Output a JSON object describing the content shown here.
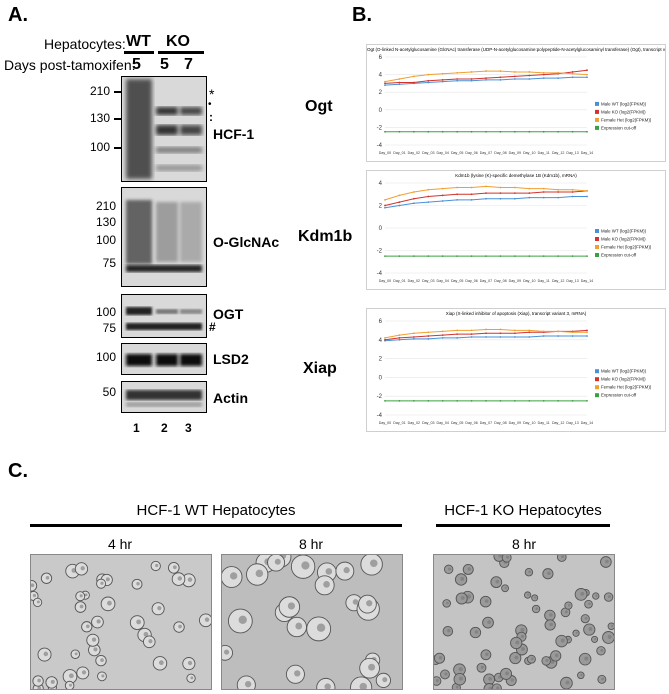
{
  "panel_a": {
    "letter": "A.",
    "row_label_1": "Hepatocytes:",
    "row_label_2": "Days post-tamoxifen:",
    "wt": "WT",
    "ko": "KO",
    "days": [
      "5",
      "5",
      "7"
    ],
    "lanes": [
      "1",
      "2",
      "3"
    ],
    "blots": [
      {
        "name": "HCF-1",
        "markers": [
          "210",
          "130",
          "100"
        ],
        "annotations": [
          "*",
          "•",
          ":"
        ]
      },
      {
        "name": "O-GlcNAc",
        "markers": [
          "210",
          "130",
          "100",
          "75"
        ]
      },
      {
        "name": "OGT",
        "markers": [
          "100",
          "75"
        ],
        "annotations": [
          "#"
        ]
      },
      {
        "name": "LSD2",
        "markers": [
          "100"
        ]
      },
      {
        "name": "Actin",
        "markers": [
          "50"
        ]
      }
    ]
  },
  "panel_b": {
    "letter": "B.",
    "legend": [
      "Male WT (log2(FPKM))",
      "Male KO (log2(FPKM))",
      "Female Het (log2(FPKM))",
      "Expression cut-off"
    ],
    "legend_colors": [
      "#4a90d9",
      "#d0342c",
      "#f0a030",
      "#3aa040"
    ],
    "x_ticks": [
      "Day_00",
      "Day_01",
      "Day_02",
      "Day_03",
      "Day_04",
      "Day_05",
      "Day_06",
      "Day_07",
      "Day_08",
      "Day_09",
      "Day_10",
      "Day_11",
      "Day_12",
      "Day_13",
      "Day_14"
    ],
    "charts": [
      {
        "gene": "Ogt",
        "title": "Ogt (O-linked N-acetylglucosamine (GlcNAc) transferase (UDP-N-acetylglucosamine:polypeptide-N-acetylglucosaminyl transferase) (Ogt), transcript variant 1, mRNA)"
      },
      {
        "gene": "Kdm1b",
        "title": "Kdm1b (lysine (K)-specific demethylase 1B (Kdm1b), mRNA)"
      },
      {
        "gene": "Xiap",
        "title": "Xiap (X-linked inhibitor of apoptosis (Xiap), transcript variant 3, mRNA)"
      }
    ]
  },
  "chart_data": [
    {
      "type": "line",
      "title": "Ogt (O-linked N-acetylglucosamine (GlcNAc) transferase (UDP-N-acetylglucosamine:polypeptide-N-acetylglucosaminyl transferase) (Ogt), transcript variant 1, mRNA)",
      "x": [
        "Day_00",
        "Day_01",
        "Day_02",
        "Day_03",
        "Day_04",
        "Day_05",
        "Day_06",
        "Day_07",
        "Day_08",
        "Day_09",
        "Day_10",
        "Day_11",
        "Day_12",
        "Day_13",
        "Day_14"
      ],
      "ylim": [
        -4,
        6
      ],
      "yticks": [
        -4,
        -2,
        0,
        2,
        4,
        6
      ],
      "series": [
        {
          "name": "Male WT (log2(FPKM))",
          "values": [
            2.8,
            2.9,
            3.0,
            3.1,
            3.2,
            3.3,
            3.3,
            3.4,
            3.4,
            3.5,
            3.5,
            3.6,
            3.6,
            3.7,
            3.7
          ]
        },
        {
          "name": "Male KO (log2(FPKM))",
          "values": [
            3.0,
            3.1,
            3.1,
            3.3,
            3.4,
            3.5,
            3.5,
            3.6,
            3.7,
            3.8,
            3.9,
            4.0,
            4.1,
            4.3,
            4.5
          ]
        },
        {
          "name": "Female Het (log2(FPKM))",
          "values": [
            3.2,
            3.5,
            3.8,
            4.0,
            4.1,
            4.2,
            4.3,
            4.4,
            4.4,
            4.3,
            4.3,
            4.2,
            4.2,
            4.1,
            4.0
          ]
        },
        {
          "name": "Expression cut-off",
          "values": [
            -2.5,
            -2.5,
            -2.5,
            -2.5,
            -2.5,
            -2.5,
            -2.5,
            -2.5,
            -2.5,
            -2.5,
            -2.5,
            -2.5,
            -2.5,
            -2.5,
            -2.5
          ]
        }
      ]
    },
    {
      "type": "line",
      "title": "Kdm1b (lysine (K)-specific demethylase 1B (Kdm1b), mRNA)",
      "x": [
        "Day_00",
        "Day_01",
        "Day_02",
        "Day_03",
        "Day_04",
        "Day_05",
        "Day_06",
        "Day_07",
        "Day_08",
        "Day_09",
        "Day_10",
        "Day_11",
        "Day_12",
        "Day_13",
        "Day_14"
      ],
      "ylim": [
        -4,
        4
      ],
      "yticks": [
        -4,
        -2,
        0,
        2,
        4
      ],
      "series": [
        {
          "name": "Male WT (log2(FPKM))",
          "values": [
            1.8,
            2.0,
            2.2,
            2.3,
            2.4,
            2.5,
            2.5,
            2.6,
            2.6,
            2.6,
            2.7,
            2.7,
            2.7,
            2.8,
            2.8
          ]
        },
        {
          "name": "Male KO (log2(FPKM))",
          "values": [
            2.0,
            2.3,
            2.6,
            2.8,
            2.9,
            3.0,
            3.0,
            3.1,
            3.1,
            3.1,
            3.1,
            3.2,
            3.2,
            3.2,
            3.3
          ]
        },
        {
          "name": "Female Het (log2(FPKM))",
          "values": [
            2.5,
            2.9,
            3.2,
            3.4,
            3.5,
            3.6,
            3.6,
            3.7,
            3.6,
            3.6,
            3.5,
            3.5,
            3.4,
            3.4,
            3.3
          ]
        },
        {
          "name": "Expression cut-off",
          "values": [
            -2.5,
            -2.5,
            -2.5,
            -2.5,
            -2.5,
            -2.5,
            -2.5,
            -2.5,
            -2.5,
            -2.5,
            -2.5,
            -2.5,
            -2.5,
            -2.5,
            -2.5
          ]
        }
      ]
    },
    {
      "type": "line",
      "title": "Xiap (X-linked inhibitor of apoptosis (Xiap), transcript variant 3, mRNA)",
      "x": [
        "Day_00",
        "Day_01",
        "Day_02",
        "Day_03",
        "Day_04",
        "Day_05",
        "Day_06",
        "Day_07",
        "Day_08",
        "Day_09",
        "Day_10",
        "Day_11",
        "Day_12",
        "Day_13",
        "Day_14"
      ],
      "ylim": [
        -4,
        6
      ],
      "yticks": [
        -4,
        -2,
        0,
        2,
        4,
        6
      ],
      "series": [
        {
          "name": "Male WT (log2(FPKM))",
          "values": [
            3.9,
            4.0,
            4.1,
            4.1,
            4.2,
            4.2,
            4.3,
            4.3,
            4.3,
            4.3,
            4.3,
            4.4,
            4.4,
            4.4,
            4.4
          ]
        },
        {
          "name": "Male KO (log2(FPKM))",
          "values": [
            4.0,
            4.2,
            4.3,
            4.4,
            4.5,
            4.6,
            4.6,
            4.7,
            4.7,
            4.7,
            4.8,
            4.8,
            4.9,
            4.9,
            5.0
          ]
        },
        {
          "name": "Female Het (log2(FPKM))",
          "values": [
            4.2,
            4.5,
            4.7,
            4.8,
            4.9,
            5.0,
            5.0,
            5.1,
            5.1,
            5.0,
            5.0,
            4.9,
            4.9,
            4.8,
            4.8
          ]
        },
        {
          "name": "Expression cut-off",
          "values": [
            -2.5,
            -2.5,
            -2.5,
            -2.5,
            -2.5,
            -2.5,
            -2.5,
            -2.5,
            -2.5,
            -2.5,
            -2.5,
            -2.5,
            -2.5,
            -2.5,
            -2.5
          ]
        }
      ]
    }
  ],
  "panel_c": {
    "letter": "C.",
    "wt_title": "HCF-1 WT Hepatocytes",
    "ko_title": "HCF-1 KO Hepatocytes",
    "time_1": "4 hr",
    "time_2": "8 hr",
    "time_3": "8 hr"
  }
}
